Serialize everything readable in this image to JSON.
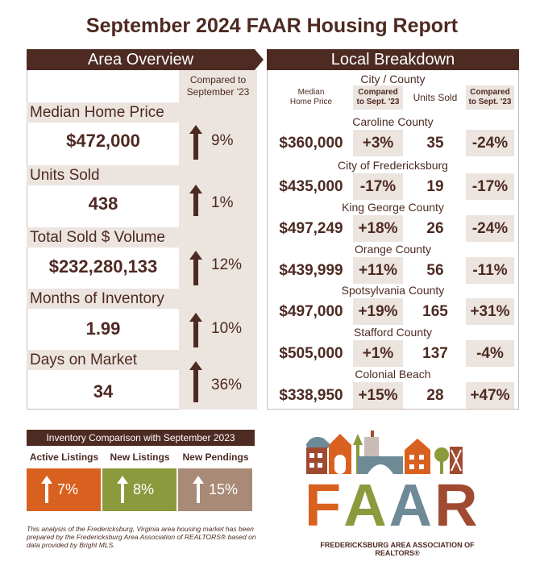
{
  "title": "September 2024 FAAR Housing Report",
  "area_overview": {
    "header": "Area Overview",
    "compared_label_1": "Compared to",
    "compared_label_2": "September '23",
    "metrics": [
      {
        "label": "Median Home Price",
        "value": "$472,000",
        "change": "9%"
      },
      {
        "label": "Units Sold",
        "value": "438",
        "change": "1%"
      },
      {
        "label": "Total Sold $ Volume",
        "value": "$232,280,133",
        "change": "12%"
      },
      {
        "label": "Months of Inventory",
        "value": "1.99",
        "change": "10%"
      },
      {
        "label": "Days on Market",
        "value": "34",
        "change": "36%"
      }
    ]
  },
  "local_breakdown": {
    "header": "Local Breakdown",
    "city_county_label": "City / County",
    "columns": {
      "median_1": "Median",
      "median_2": "Home Price",
      "compared_1": "Compared",
      "compared_2": "to Sept. '23",
      "units": "Units Sold",
      "compared_units_1": "Compared",
      "compared_units_2": "to Sept. '23"
    },
    "rows": [
      {
        "name": "Caroline County",
        "price": "$360,000",
        "price_change": "+3%",
        "units": "35",
        "units_change": "-24%"
      },
      {
        "name": "City of Fredericksburg",
        "price": "$435,000",
        "price_change": "-17%",
        "units": "19",
        "units_change": "-17%"
      },
      {
        "name": "King George County",
        "price": "$497,249",
        "price_change": "+18%",
        "units": "26",
        "units_change": "-24%"
      },
      {
        "name": "Orange County",
        "price": "$439,999",
        "price_change": "+11%",
        "units": "56",
        "units_change": "-11%"
      },
      {
        "name": "Spotsylvania County",
        "price": "$497,000",
        "price_change": "+19%",
        "units": "165",
        "units_change": "+31%"
      },
      {
        "name": "Stafford County",
        "price": "$505,000",
        "price_change": "+1%",
        "units": "137",
        "units_change": "-4%"
      },
      {
        "name": "Colonial Beach",
        "price": "$338,950",
        "price_change": "+15%",
        "units": "28",
        "units_change": "+47%"
      }
    ]
  },
  "inventory": {
    "header": "Inventory Comparison with September 2023",
    "items": [
      {
        "label": "Active Listings",
        "change": "7%",
        "color": "#d9611f"
      },
      {
        "label": "New Listings",
        "change": "8%",
        "color": "#8b9a3c"
      },
      {
        "label": "New Pendings",
        "change": "15%",
        "color": "#a88a76"
      }
    ]
  },
  "footnote": "This analysis of the Fredericksburg, Virginia area housing market has been prepared by the Fredericksburg Area Association of REALTORS® based on data provided by Bright MLS.",
  "logo": {
    "letters": [
      "F",
      "A",
      "A",
      "R"
    ],
    "letter_colors": [
      "#d9611f",
      "#8b9a3c",
      "#6f8a97",
      "#a04a32"
    ],
    "subtitle": "FREDERICKSBURG AREA ASSOCIATION OF REALTORS®"
  }
}
